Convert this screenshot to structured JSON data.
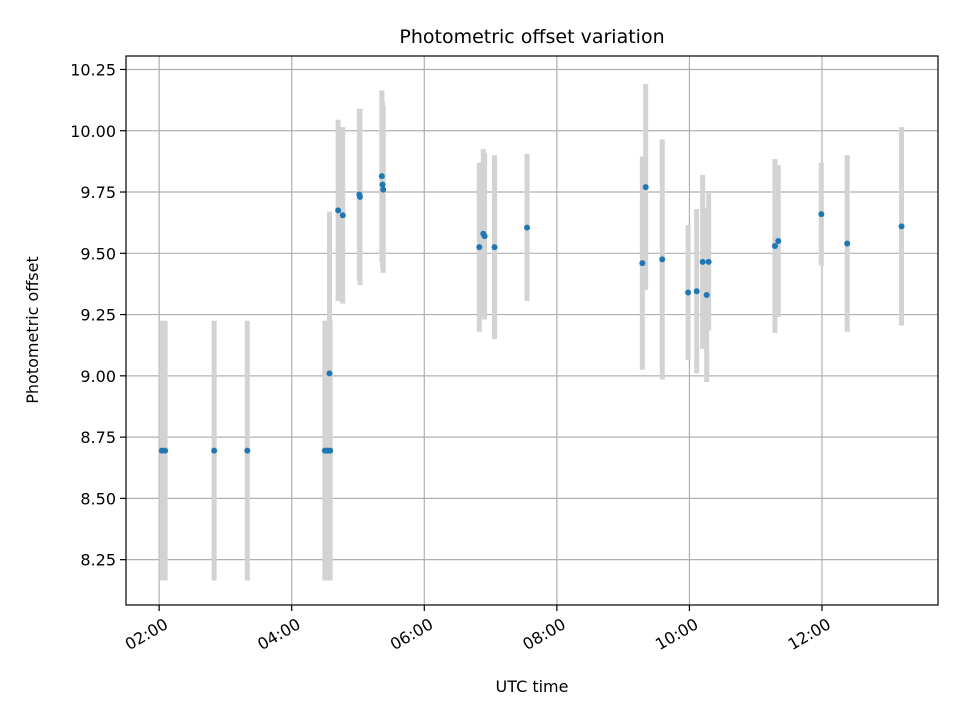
{
  "chart_data": {
    "type": "scatter",
    "title": "Photometric offset variation",
    "xlabel": "UTC time",
    "ylabel": "Photometric offset",
    "x_unit": "hours UTC",
    "xlim": [
      1.5,
      13.75
    ],
    "ylim": [
      8.065,
      10.305
    ],
    "xticks": [
      {
        "value": 2,
        "label": "02:00"
      },
      {
        "value": 4,
        "label": "04:00"
      },
      {
        "value": 6,
        "label": "06:00"
      },
      {
        "value": 8,
        "label": "08:00"
      },
      {
        "value": 10,
        "label": "10:00"
      },
      {
        "value": 12,
        "label": "12:00"
      }
    ],
    "yticks": [
      {
        "value": 8.25,
        "label": "8.25"
      },
      {
        "value": 8.5,
        "label": "8.50"
      },
      {
        "value": 8.75,
        "label": "8.75"
      },
      {
        "value": 9.0,
        "label": "9.00"
      },
      {
        "value": 9.25,
        "label": "9.25"
      },
      {
        "value": 9.5,
        "label": "9.50"
      },
      {
        "value": 9.75,
        "label": "9.75"
      },
      {
        "value": 10.0,
        "label": "10.00"
      },
      {
        "value": 10.25,
        "label": "10.25"
      }
    ],
    "grid": true,
    "point_color": "#1f77b4",
    "errorbar_color": "#d3d3d3",
    "points": [
      {
        "x": 2.04,
        "y": 8.695,
        "err": 0.53
      },
      {
        "x": 2.09,
        "y": 8.695,
        "err": 0.53
      },
      {
        "x": 2.83,
        "y": 8.695,
        "err": 0.53
      },
      {
        "x": 3.33,
        "y": 8.695,
        "err": 0.53
      },
      {
        "x": 4.5,
        "y": 8.695,
        "err": 0.53
      },
      {
        "x": 4.54,
        "y": 8.695,
        "err": 0.53
      },
      {
        "x": 4.58,
        "y": 8.695,
        "err": 0.53
      },
      {
        "x": 4.57,
        "y": 9.01,
        "err": 0.66
      },
      {
        "x": 4.7,
        "y": 9.675,
        "err": 0.37
      },
      {
        "x": 4.77,
        "y": 9.655,
        "err": 0.36
      },
      {
        "x": 5.02,
        "y": 9.74,
        "err": 0.35
      },
      {
        "x": 5.03,
        "y": 9.73,
        "err": 0.36
      },
      {
        "x": 5.36,
        "y": 9.815,
        "err": 0.35
      },
      {
        "x": 5.37,
        "y": 9.78,
        "err": 0.34
      },
      {
        "x": 5.38,
        "y": 9.76,
        "err": 0.34
      },
      {
        "x": 6.83,
        "y": 9.525,
        "err": 0.345
      },
      {
        "x": 6.89,
        "y": 9.58,
        "err": 0.345
      },
      {
        "x": 6.91,
        "y": 9.57,
        "err": 0.34
      },
      {
        "x": 7.06,
        "y": 9.525,
        "err": 0.375
      },
      {
        "x": 7.55,
        "y": 9.605,
        "err": 0.3
      },
      {
        "x": 9.29,
        "y": 9.46,
        "err": 0.435
      },
      {
        "x": 9.34,
        "y": 9.77,
        "err": 0.42
      },
      {
        "x": 9.59,
        "y": 9.475,
        "err": 0.49
      },
      {
        "x": 9.98,
        "y": 9.34,
        "err": 0.275
      },
      {
        "x": 10.11,
        "y": 9.345,
        "err": 0.335
      },
      {
        "x": 10.2,
        "y": 9.465,
        "err": 0.355
      },
      {
        "x": 10.26,
        "y": 9.33,
        "err": 0.355
      },
      {
        "x": 10.29,
        "y": 9.465,
        "err": 0.28
      },
      {
        "x": 11.29,
        "y": 9.53,
        "err": 0.355
      },
      {
        "x": 11.34,
        "y": 9.55,
        "err": 0.31
      },
      {
        "x": 11.99,
        "y": 9.66,
        "err": 0.21
      },
      {
        "x": 12.38,
        "y": 9.54,
        "err": 0.36
      },
      {
        "x": 13.2,
        "y": 9.61,
        "err": 0.405
      }
    ]
  }
}
